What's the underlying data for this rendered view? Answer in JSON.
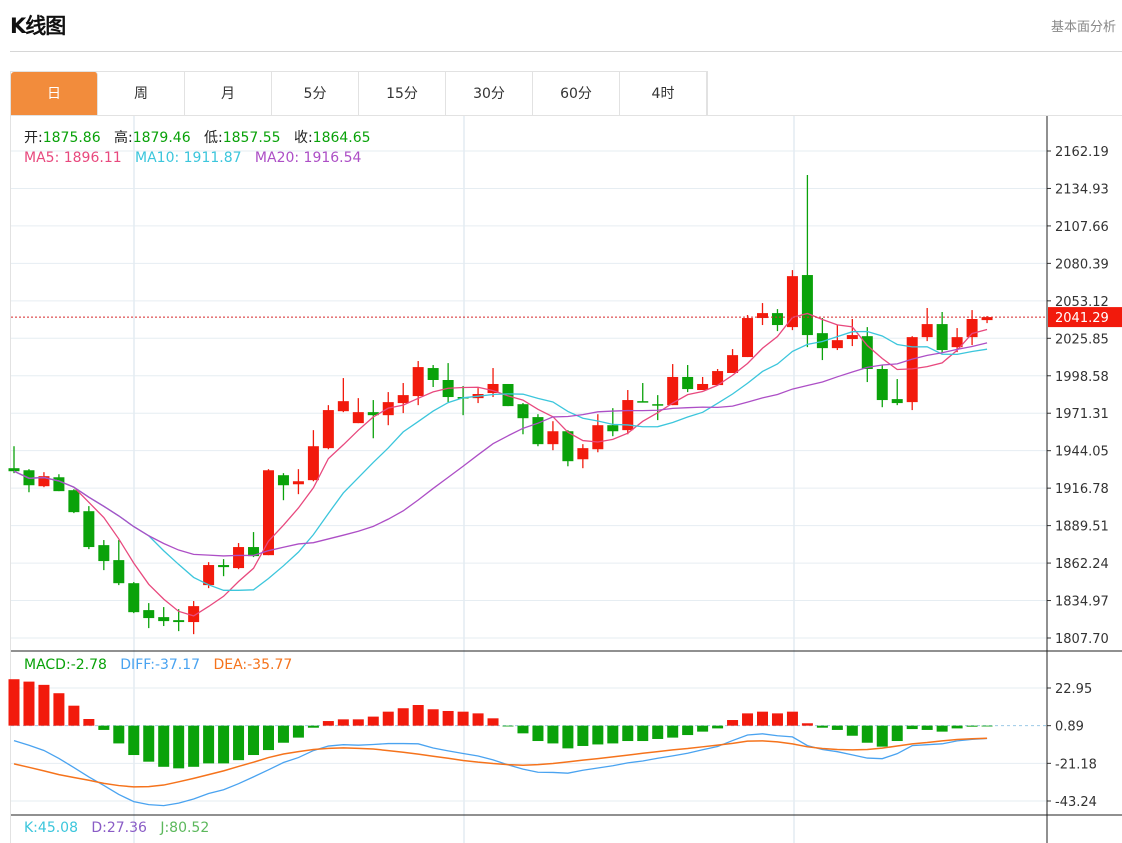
{
  "header": {
    "title": "K线图",
    "side_link": "基本面分析"
  },
  "tabs": [
    {
      "label": "日",
      "active": true
    },
    {
      "label": "周"
    },
    {
      "label": "月"
    },
    {
      "label": "5分"
    },
    {
      "label": "15分"
    },
    {
      "label": "30分"
    },
    {
      "label": "60分"
    },
    {
      "label": "4时"
    }
  ],
  "ohlc_info": {
    "open_label": "开:",
    "open": "1875.86",
    "high_label": "高:",
    "high": "1879.46",
    "low_label": "低:",
    "low": "1857.55",
    "close_label": "收:",
    "close": "1864.65"
  },
  "ma_info": {
    "ma5_label": "MA5:",
    "ma5": "1896.11",
    "ma10_label": "MA10:",
    "ma10": "1911.87",
    "ma20_label": "MA20:",
    "ma20": "1916.54"
  },
  "macd_info": {
    "macd_label": "MACD:",
    "macd": "-2.78",
    "diff_label": "DIFF:",
    "diff": "-37.17",
    "dea_label": "DEA:",
    "dea": "-35.77"
  },
  "kdj_info": {
    "k_label": "K:",
    "k": "45.08",
    "d_label": "D:",
    "d": "27.36",
    "j_label": "J:",
    "j": "80.52"
  },
  "current_price": "2041.29",
  "colors": {
    "up": "#f21a0c",
    "down": "#0aa20a",
    "accent": "#f28c3c",
    "ma5": "#e8497e",
    "ma10": "#3cc6dc",
    "ma20": "#ad4fc6",
    "diff": "#4aa3f0",
    "dea": "#f5731c"
  },
  "chart_data": {
    "type": "candlestick",
    "price_axis": {
      "ticks": [
        "2162.19",
        "2134.93",
        "2107.66",
        "2080.39",
        "2053.12",
        "2025.85",
        "1998.58",
        "1971.31",
        "1944.05",
        "1916.78",
        "1889.51",
        "1862.24",
        "1834.97",
        "1807.70"
      ],
      "range": [
        1807.7,
        2162.19
      ]
    },
    "macd_axis": {
      "ticks": [
        "22.95",
        "0.89",
        "-21.18",
        "-43.24"
      ],
      "range": [
        -43.24,
        22.95
      ]
    },
    "ohlc": [
      [
        1931.3,
        1947.3,
        1927.7,
        1929.1
      ],
      [
        1929.8,
        1930.6,
        1913.8,
        1918.9
      ],
      [
        1918.2,
        1928.4,
        1917.5,
        1925.5
      ],
      [
        1924.7,
        1926.9,
        1914.6,
        1914.6
      ],
      [
        1915.3,
        1916.0,
        1898.6,
        1899.3
      ],
      [
        1900.0,
        1903.7,
        1872.4,
        1873.9
      ],
      [
        1875.3,
        1879.0,
        1857.1,
        1863.7
      ],
      [
        1864.4,
        1879.0,
        1846.2,
        1847.6
      ],
      [
        1847.6,
        1848.4,
        1825.8,
        1826.5
      ],
      [
        1828.0,
        1833.1,
        1814.9,
        1822.2
      ],
      [
        1822.9,
        1830.2,
        1816.4,
        1820.0
      ],
      [
        1820.7,
        1828.7,
        1812.7,
        1819.3
      ],
      [
        1819.3,
        1834.6,
        1810.5,
        1830.9
      ],
      [
        1846.2,
        1862.9,
        1844.0,
        1860.8
      ],
      [
        1860.8,
        1865.1,
        1852.7,
        1859.3
      ],
      [
        1858.6,
        1876.8,
        1857.8,
        1873.9
      ],
      [
        1873.9,
        1884.8,
        1866.6,
        1867.3
      ],
      [
        1868.0,
        1930.6,
        1868.0,
        1929.8
      ],
      [
        1926.2,
        1927.7,
        1908.0,
        1918.9
      ],
      [
        1919.6,
        1930.6,
        1912.4,
        1921.8
      ],
      [
        1922.6,
        1959.0,
        1921.8,
        1947.3
      ],
      [
        1945.9,
        1977.2,
        1945.1,
        1973.6
      ],
      [
        1972.8,
        1996.9,
        1972.1,
        1980.1
      ],
      [
        1964.1,
        1982.3,
        1964.1,
        1972.1
      ],
      [
        1972.1,
        1980.9,
        1953.1,
        1969.9
      ],
      [
        1969.9,
        1986.7,
        1962.6,
        1979.4
      ],
      [
        1978.7,
        1993.3,
        1971.4,
        1984.5
      ],
      [
        1983.8,
        2009.3,
        1977.2,
        2004.9
      ],
      [
        2004.2,
        2006.4,
        1990.4,
        1995.5
      ],
      [
        1995.5,
        2007.8,
        1979.4,
        1983.1
      ],
      [
        1983.1,
        1991.1,
        1969.9,
        1982.3
      ],
      [
        1982.3,
        1989.6,
        1978.7,
        1985.3
      ],
      [
        1986.0,
        2004.2,
        1983.1,
        1992.6
      ],
      [
        1992.6,
        1992.6,
        1976.5,
        1976.5
      ],
      [
        1977.9,
        1978.7,
        1956.0,
        1967.7
      ],
      [
        1968.5,
        1970.6,
        1947.3,
        1948.8
      ],
      [
        1948.8,
        1965.5,
        1944.4,
        1958.2
      ],
      [
        1958.2,
        1959.0,
        1932.7,
        1936.4
      ],
      [
        1937.8,
        1948.8,
        1931.3,
        1945.9
      ],
      [
        1945.1,
        1970.6,
        1942.9,
        1962.6
      ],
      [
        1962.6,
        1975.0,
        1954.6,
        1958.2
      ],
      [
        1959.0,
        1988.2,
        1956.0,
        1980.9
      ],
      [
        1980.1,
        1993.3,
        1979.4,
        1979.4
      ],
      [
        1977.9,
        1984.5,
        1966.3,
        1977.2
      ],
      [
        1977.2,
        2007.1,
        1977.2,
        1997.7
      ],
      [
        1997.7,
        2006.4,
        1986.7,
        1988.9
      ],
      [
        1988.2,
        1997.7,
        1988.2,
        1992.6
      ],
      [
        1991.8,
        2003.5,
        1991.8,
        2002.0
      ],
      [
        2000.6,
        2018.0,
        2000.6,
        2013.6
      ],
      [
        2012.2,
        2042.8,
        2012.2,
        2040.6
      ],
      [
        2040.6,
        2051.5,
        2035.5,
        2044.2
      ],
      [
        2044.2,
        2047.1,
        2031.1,
        2035.5
      ],
      [
        2034.0,
        2075.5,
        2031.8,
        2071.1
      ],
      [
        2071.9,
        2144.7,
        2019.4,
        2028.2
      ],
      [
        2029.6,
        2040.6,
        2010.0,
        2018.7
      ],
      [
        2018.7,
        2035.5,
        2017.3,
        2024.5
      ],
      [
        2025.3,
        2039.9,
        2020.2,
        2028.2
      ],
      [
        2027.4,
        2034.0,
        1994.0,
        2003.5
      ],
      [
        2003.5,
        2006.4,
        1975.7,
        1980.9
      ],
      [
        1981.6,
        1996.2,
        1977.2,
        1978.7
      ],
      [
        1979.4,
        2027.4,
        1973.6,
        2026.7
      ],
      [
        2026.7,
        2047.9,
        2023.8,
        2036.2
      ],
      [
        2036.2,
        2045.0,
        2015.1,
        2017.3
      ],
      [
        2019.4,
        2033.3,
        2015.8,
        2026.7
      ],
      [
        2026.7,
        2046.4,
        2020.9,
        2039.9
      ],
      [
        2039.1,
        2042.1,
        2036.9,
        2041.3
      ]
    ],
    "macd_hist": [
      27.2,
      25.8,
      23.9,
      19.0,
      11.7,
      3.9,
      -2.5,
      -10.4,
      -17.2,
      -21.1,
      -24.1,
      -25.0,
      -24.1,
      -22.1,
      -22.1,
      -20.2,
      -17.2,
      -14.3,
      -10.0,
      -7.0,
      -1.2,
      2.7,
      3.7,
      3.7,
      5.3,
      8.2,
      10.2,
      12.1,
      9.6,
      8.6,
      8.2,
      7.2,
      4.3,
      -0.3,
      -4.5,
      -9.0,
      -10.4,
      -13.3,
      -11.9,
      -11.0,
      -10.4,
      -9.0,
      -9.0,
      -7.8,
      -7.0,
      -5.5,
      -3.5,
      -1.6,
      3.3,
      7.2,
      8.2,
      7.2,
      8.2,
      1.4,
      -1.2,
      -2.5,
      -5.9,
      -10.0,
      -12.3,
      -9.0,
      -2.0,
      -2.5,
      -3.5,
      -1.6,
      -0.6,
      -0.2
    ],
    "dea": [
      -21.5,
      -23.5,
      -25.6,
      -27.8,
      -29.5,
      -31.1,
      -32.9,
      -34.2,
      -35.0,
      -34.8,
      -33.9,
      -32.0,
      -30.0,
      -27.8,
      -25.6,
      -23.0,
      -20.5,
      -17.8,
      -15.7,
      -14.3,
      -13.1,
      -12.4,
      -12.1,
      -12.4,
      -12.8,
      -13.7,
      -14.7,
      -15.8,
      -17.0,
      -18.2,
      -19.5,
      -20.5,
      -21.3,
      -21.9,
      -22.3,
      -21.9,
      -21.3,
      -20.3,
      -19.3,
      -18.4,
      -17.4,
      -16.4,
      -15.3,
      -14.3,
      -13.3,
      -12.5,
      -11.5,
      -10.5,
      -9.5,
      -8.2,
      -8.0,
      -8.6,
      -9.8,
      -11.5,
      -12.5,
      -13.1,
      -13.3,
      -13.1,
      -12.3,
      -11.0,
      -9.8,
      -9.0,
      -8.0,
      -7.2,
      -6.8,
      -6.5
    ]
  }
}
